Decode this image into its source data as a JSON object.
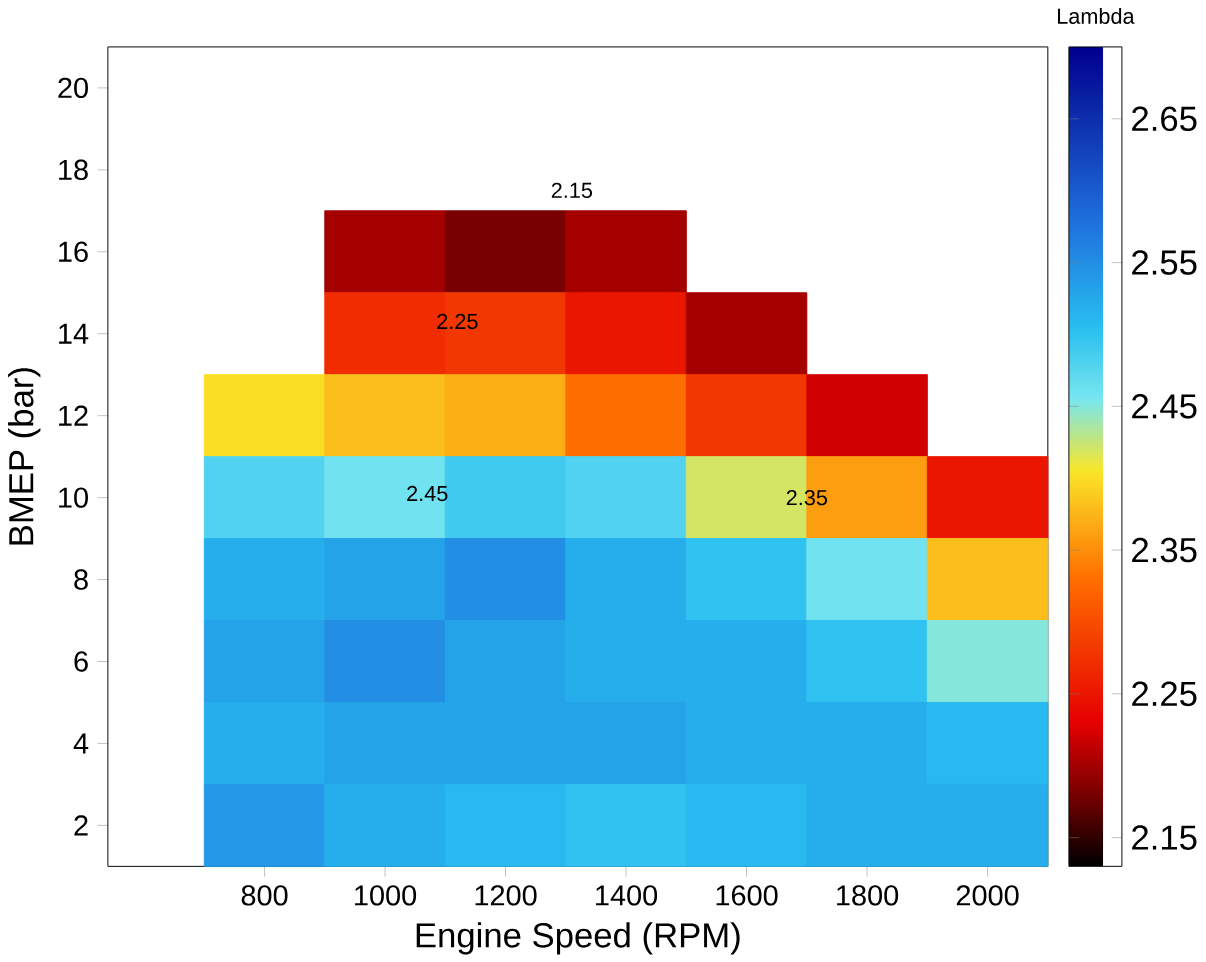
{
  "chart_data": {
    "type": "heatmap",
    "xlabel": "Engine Speed (RPM)",
    "ylabel": "BMEP (bar)",
    "clabel": "Lambda",
    "categories": [
      "800",
      "1000",
      "1200",
      "1400",
      "1600",
      "1800",
      "2000"
    ],
    "y_categories": [
      "20",
      "18",
      "16",
      "14",
      "12",
      "10",
      "8",
      "6",
      "4",
      "2"
    ],
    "cells": [
      [
        null,
        null,
        null,
        null,
        null,
        null,
        null
      ],
      [
        null,
        null,
        null,
        null,
        null,
        null,
        null
      ],
      [
        null,
        2.2,
        2.18,
        2.2,
        null,
        null,
        null
      ],
      [
        null,
        2.27,
        2.28,
        2.25,
        2.2,
        null,
        null
      ],
      [
        2.4,
        2.38,
        2.37,
        2.33,
        2.28,
        2.22,
        null
      ],
      [
        2.48,
        2.46,
        2.49,
        2.48,
        2.42,
        2.36,
        2.25
      ],
      [
        2.52,
        2.53,
        2.55,
        2.52,
        2.5,
        2.46,
        2.38
      ],
      [
        2.53,
        2.55,
        2.53,
        2.52,
        2.52,
        2.5,
        2.45
      ],
      [
        2.52,
        2.53,
        2.53,
        2.53,
        2.52,
        2.52,
        2.51
      ],
      [
        2.54,
        2.52,
        2.51,
        2.5,
        2.51,
        2.52,
        2.52
      ]
    ],
    "clim": [
      2.13,
      2.7
    ],
    "cticks": [
      2.15,
      2.25,
      2.35,
      2.45,
      2.55,
      2.65
    ],
    "annotations": [
      "2.15",
      "2.25",
      "2.45",
      "2.35"
    ]
  }
}
